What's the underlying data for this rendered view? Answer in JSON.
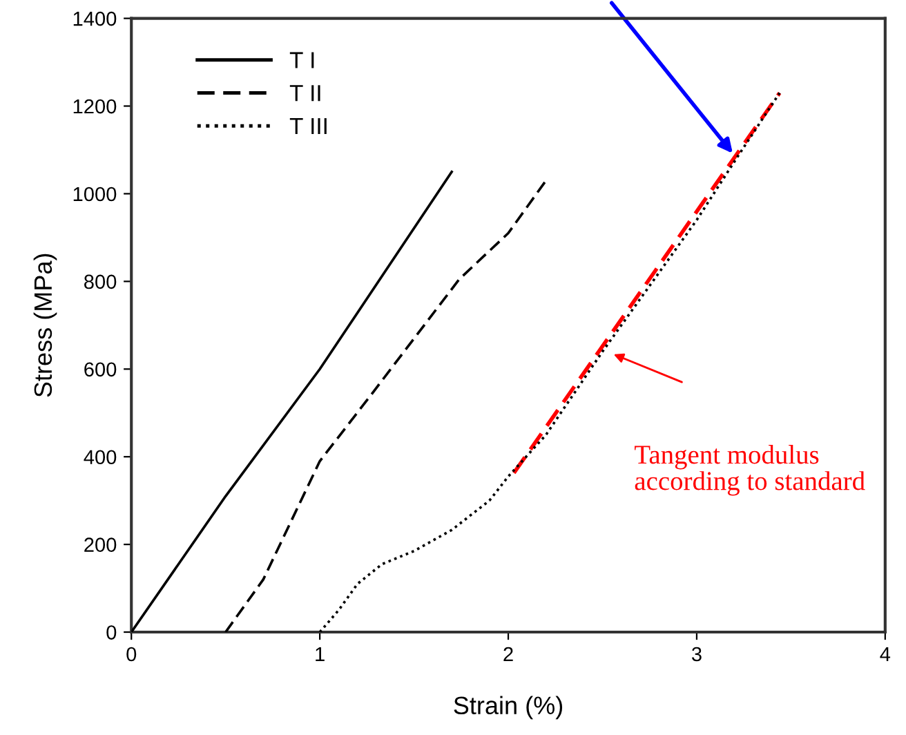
{
  "chart_data": {
    "type": "line",
    "xlabel": "Strain (%)",
    "ylabel": "Stress (MPa)",
    "xlim": [
      0,
      4
    ],
    "ylim": [
      0,
      1400
    ],
    "xticks": [
      0,
      1,
      2,
      3,
      4
    ],
    "yticks": [
      0,
      200,
      400,
      600,
      800,
      1000,
      1200,
      1400
    ],
    "grid": false,
    "legend": "top left",
    "marker": "none",
    "series": [
      {
        "name": "T I",
        "color": "#000000",
        "line_style": "solid",
        "x": [
          0,
          0.5,
          1.0,
          1.7
        ],
        "values": [
          0,
          310,
          600,
          1050
        ]
      },
      {
        "name": "T II",
        "color": "#000000",
        "line_style": "dashed",
        "x": [
          0.5,
          0.7,
          1.0,
          1.27,
          1.74,
          2.0,
          2.2
        ],
        "values": [
          0,
          120,
          390,
          540,
          805,
          910,
          1030
        ]
      },
      {
        "name": "T III",
        "color": "#000000",
        "line_style": "dotted",
        "x": [
          1.0,
          1.1,
          1.2,
          1.33,
          1.5,
          1.7,
          1.9,
          2.0,
          2.2,
          2.5,
          3.0,
          3.21,
          3.44
        ],
        "values": [
          0,
          50,
          110,
          155,
          185,
          233,
          300,
          355,
          450,
          640,
          940,
          1080,
          1230
        ]
      },
      {
        "color": "#ff0000",
        "line_style": "dashed",
        "x": [
          2.03,
          3.44
        ],
        "values": [
          363,
          1230
        ]
      }
    ],
    "annotations": [
      "Tangent modulus according to standard"
    ]
  }
}
